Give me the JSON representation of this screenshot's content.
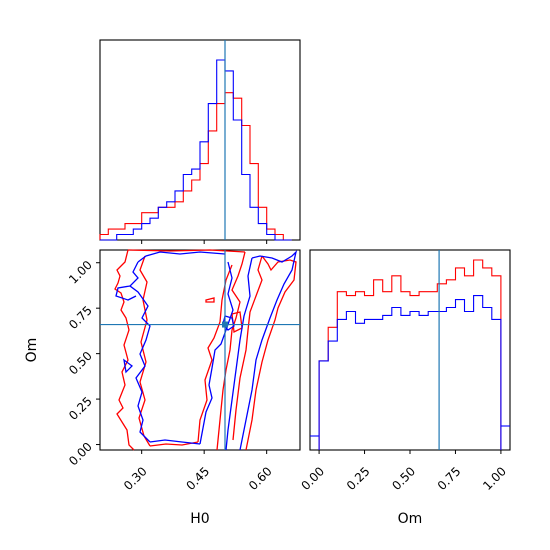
{
  "chart_data": {
    "type": "corner",
    "truth": {
      "H0": 0.5,
      "Om": 0.66
    },
    "colors": {
      "series_a": "#ff0000",
      "series_b": "#0000ff",
      "truth_line": "#1f77b4"
    },
    "panels": [
      {
        "id": "hist_H0",
        "type": "histogram",
        "xlim": [
          0.2,
          0.68
        ],
        "bins": [
          0.2,
          0.22,
          0.24,
          0.26,
          0.28,
          0.3,
          0.32,
          0.34,
          0.36,
          0.38,
          0.4,
          0.42,
          0.44,
          0.46,
          0.48,
          0.5,
          0.52,
          0.54,
          0.56,
          0.58,
          0.6,
          0.62,
          0.64,
          0.66
        ],
        "series": [
          {
            "color": "#ff0000",
            "counts": [
              1,
              2,
              2,
              3,
              3,
              5,
              5,
              6,
              6,
              7,
              9,
              11,
              14,
              20,
              25,
              27,
              26,
              21,
              14,
              6,
              2,
              1,
              0
            ]
          },
          {
            "color": "#0000ff",
            "counts": [
              0,
              0,
              1,
              1,
              2,
              3,
              4,
              6,
              7,
              9,
              12,
              13,
              18,
              25,
              33,
              31,
              22,
              12,
              6,
              3,
              1,
              0,
              0
            ]
          }
        ]
      },
      {
        "id": "contour_H0_Om",
        "type": "contour",
        "xlim": [
          0.2,
          0.68
        ],
        "ylim": [
          -0.03,
          1.07
        ],
        "xlabel": "H0",
        "ylabel": "Om",
        "xticks": [
          "0.30",
          "0.45",
          "0.60"
        ],
        "yticks": [
          "0.00",
          "0.25",
          "0.50",
          "0.75",
          "1.00"
        ],
        "series": [
          {
            "color": "#ff0000"
          },
          {
            "color": "#0000ff"
          }
        ]
      },
      {
        "id": "hist_Om",
        "type": "histogram",
        "xlim": [
          -0.05,
          1.05
        ],
        "xlabel": "Om",
        "xticks": [
          "0.00",
          "0.25",
          "0.50",
          "0.75",
          "1.00"
        ],
        "bins": [
          0.0,
          0.05,
          0.1,
          0.15,
          0.2,
          0.25,
          0.3,
          0.35,
          0.4,
          0.45,
          0.5,
          0.55,
          0.6,
          0.65,
          0.7,
          0.75,
          0.8,
          0.85,
          0.9,
          0.95,
          1.0
        ],
        "series": [
          {
            "color": "#ff0000",
            "counts": [
              0.45,
              0.62,
              0.8,
              0.78,
              0.8,
              0.78,
              0.86,
              0.8,
              0.88,
              0.8,
              0.78,
              0.8,
              0.8,
              0.84,
              0.86,
              0.92,
              0.88,
              0.96,
              0.92,
              0.88
            ]
          },
          {
            "color": "#0000ff",
            "counts": [
              0.45,
              0.55,
              0.66,
              0.7,
              0.64,
              0.66,
              0.66,
              0.68,
              0.72,
              0.68,
              0.7,
              0.68,
              0.7,
              0.7,
              0.72,
              0.76,
              0.7,
              0.78,
              0.72,
              0.66
            ]
          }
        ]
      }
    ]
  }
}
